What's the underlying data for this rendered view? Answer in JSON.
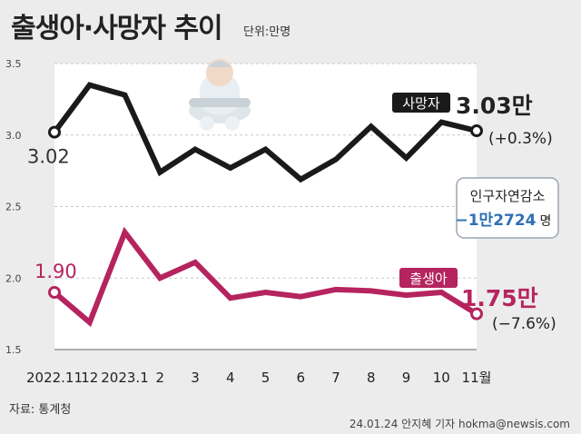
{
  "header": {
    "title": "출생아·사망자 추이",
    "unit": "단위:만명"
  },
  "footer": {
    "source": "자료: 통계청",
    "credit": "24.01.24 안지혜 기자 hokma@newsis.com"
  },
  "infobox": {
    "line1": "인구자연감소",
    "value": "−1만2724",
    "suffix": "명"
  },
  "colors": {
    "deaths": "#1a1a1a",
    "births": "#b5245e",
    "info_value": "#2f6fb5",
    "plot_bg": "#ffffff",
    "page_bg": "#ececec"
  },
  "chart_data": {
    "type": "line",
    "categories": [
      "2022.11",
      "12",
      "2023.1",
      "2",
      "3",
      "4",
      "5",
      "6",
      "7",
      "8",
      "9",
      "10",
      "11월"
    ],
    "ylim": [
      1.5,
      3.5
    ],
    "yticks": [
      "1.5",
      "2.0",
      "2.5",
      "3.0",
      "3.5"
    ],
    "series": [
      {
        "name": "사망자",
        "values": [
          3.02,
          3.35,
          3.28,
          2.74,
          2.9,
          2.77,
          2.9,
          2.69,
          2.83,
          3.06,
          2.84,
          3.09,
          3.03
        ],
        "start_label": "3.02",
        "end_label": "3.03만",
        "change": "(+0.3%)"
      },
      {
        "name": "출생아",
        "values": [
          1.9,
          1.69,
          2.32,
          2.0,
          2.11,
          1.86,
          1.9,
          1.87,
          1.92,
          1.91,
          1.88,
          1.9,
          1.75
        ],
        "start_label": "1.90",
        "end_label": "1.75만",
        "change": "(−7.6%)"
      }
    ]
  }
}
